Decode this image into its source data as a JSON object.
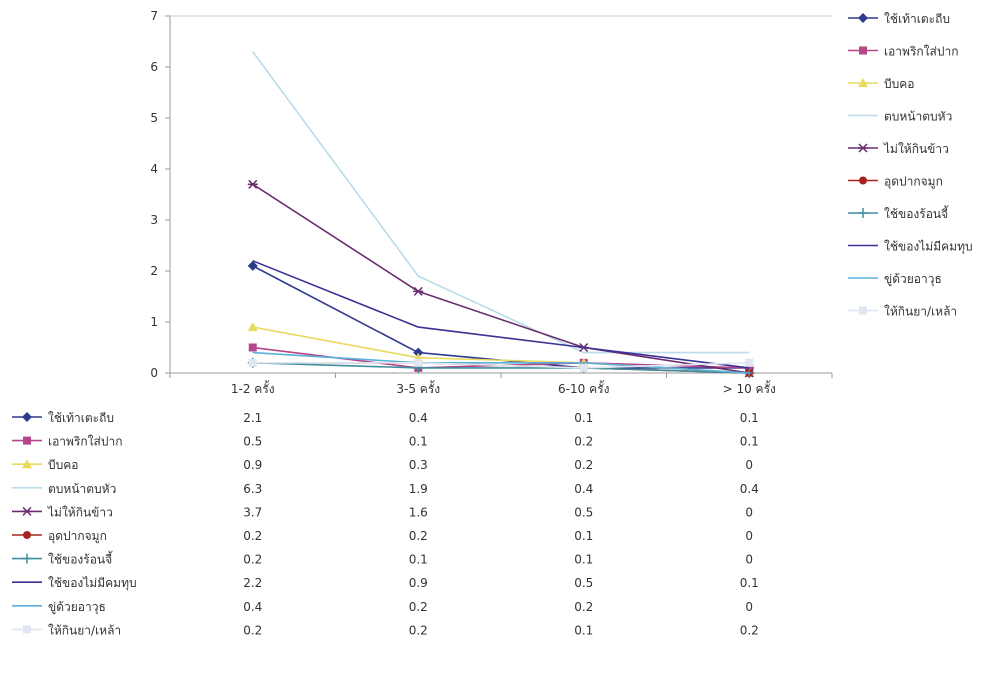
{
  "chart_data": {
    "type": "line",
    "categories": [
      "1-2 ครั้ง",
      "3-5 ครั้ง",
      "6-10 ครั้ง",
      "> 10 ครั้ง"
    ],
    "ylim": [
      0,
      7
    ],
    "yticks": [
      0,
      1,
      2,
      3,
      4,
      5,
      6,
      7
    ],
    "grid": false,
    "legend_position": "right",
    "has_data_table": true,
    "series": [
      {
        "name": "ใช้เท้าเตะถีบ",
        "values": [
          2.1,
          0.4,
          0.1,
          0.1
        ],
        "color": "#2e3a8c",
        "marker": "diamond"
      },
      {
        "name": "เอาพริกใส่ปาก",
        "values": [
          0.5,
          0.1,
          0.2,
          0.1
        ],
        "color": "#b5468a",
        "marker": "square"
      },
      {
        "name": "บีบคอ",
        "values": [
          0.9,
          0.3,
          0.2,
          0
        ],
        "color": "#e9d95c",
        "marker": "triangle"
      },
      {
        "name": "ตบหน้าตบหัว",
        "values": [
          6.3,
          1.9,
          0.4,
          0.4
        ],
        "color": "#b8dcea",
        "marker": "none"
      },
      {
        "name": "ไม่ให้กินข้าว",
        "values": [
          3.7,
          1.6,
          0.5,
          0
        ],
        "color": "#6b2c6e",
        "marker": "star"
      },
      {
        "name": "อุดปากจมูก",
        "values": [
          0.2,
          0.2,
          0.1,
          0
        ],
        "color": "#a8231f",
        "marker": "circle"
      },
      {
        "name": "ใช้ของร้อนจี้",
        "values": [
          0.2,
          0.1,
          0.1,
          0
        ],
        "color": "#3d8f9e",
        "marker": "plus"
      },
      {
        "name": "ใช้ของไม่มีคมทุบ",
        "values": [
          2.2,
          0.9,
          0.5,
          0.1
        ],
        "color": "#3a3296",
        "marker": "none"
      },
      {
        "name": "ขู่ด้วยอาวุธ",
        "values": [
          0.4,
          0.2,
          0.2,
          0
        ],
        "color": "#5ab0d8",
        "marker": "none"
      },
      {
        "name": "ให้กินยา/เหล้า",
        "values": [
          0.2,
          0.2,
          0.1,
          0.2
        ],
        "color": "#dfe6f2",
        "marker": "square"
      }
    ]
  }
}
